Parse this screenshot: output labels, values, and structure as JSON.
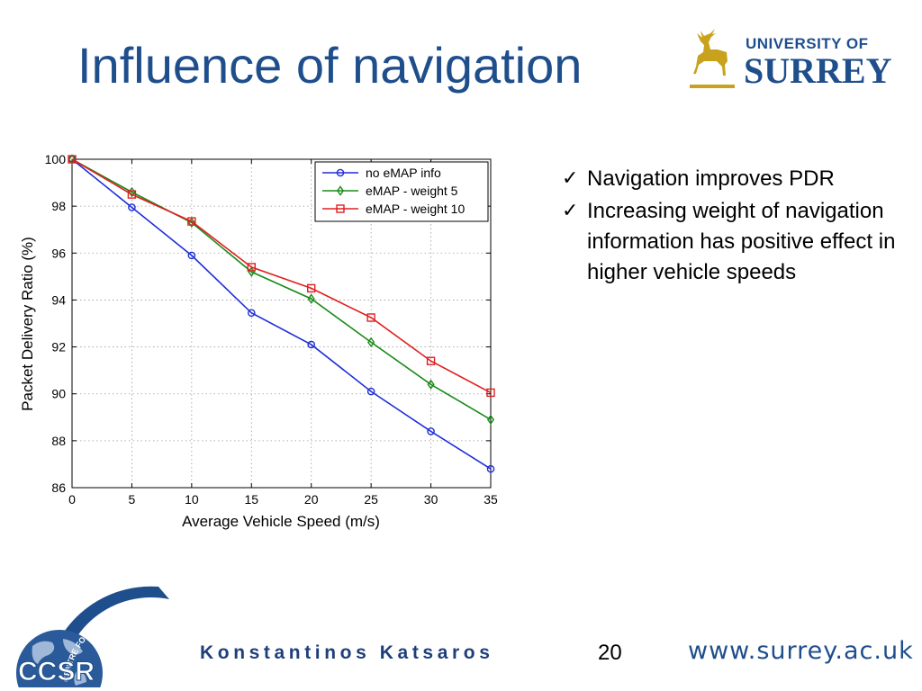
{
  "slide": {
    "title": "Influence of navigation",
    "page_number": "20",
    "author": "Konstantinos Katsaros",
    "url": "www.surrey.ac.uk"
  },
  "logos": {
    "university": {
      "line1": "UNIVERSITY OF",
      "line2": "SURREY",
      "color": "#1f4e8c",
      "stag_color": "#c8a21c"
    },
    "ccsr": {
      "text": "CCSR",
      "arc_text": "CENTRE FOR COMMUNICATION SYSTEMS RESEARCH",
      "color": "#1f4e8c"
    }
  },
  "bullets": [
    {
      "icon": "check-icon",
      "text": "Navigation improves PDR"
    },
    {
      "icon": "check-icon",
      "text": "Increasing weight of navigation information has positive effect in higher vehicle speeds"
    }
  ],
  "chart_data": {
    "type": "line",
    "title": "",
    "xlabel": "Average Vehicle Speed (m/s)",
    "ylabel": "Packet Delivery Ratio (%)",
    "xlim": [
      0,
      35
    ],
    "ylim": [
      86,
      100
    ],
    "xticks": [
      0,
      5,
      10,
      15,
      20,
      25,
      30,
      35
    ],
    "yticks": [
      86,
      88,
      90,
      92,
      94,
      96,
      98,
      100
    ],
    "grid": true,
    "legend_position": "top-right",
    "x": [
      0,
      5,
      10,
      15,
      20,
      25,
      30,
      35
    ],
    "series": [
      {
        "name": "no eMAP info",
        "color": "#1f2fd6",
        "marker": "circle",
        "values": [
          100,
          97.95,
          95.9,
          93.45,
          92.1,
          90.1,
          88.4,
          86.8
        ]
      },
      {
        "name": "eMAP - weight 5",
        "color": "#1a8a1a",
        "marker": "diamond",
        "values": [
          100,
          98.6,
          97.3,
          95.2,
          94.05,
          92.2,
          90.4,
          88.9
        ]
      },
      {
        "name": "eMAP - weight 10",
        "color": "#e02020",
        "marker": "square",
        "values": [
          100,
          98.5,
          97.35,
          95.4,
          94.5,
          93.25,
          91.4,
          90.05
        ]
      }
    ]
  }
}
